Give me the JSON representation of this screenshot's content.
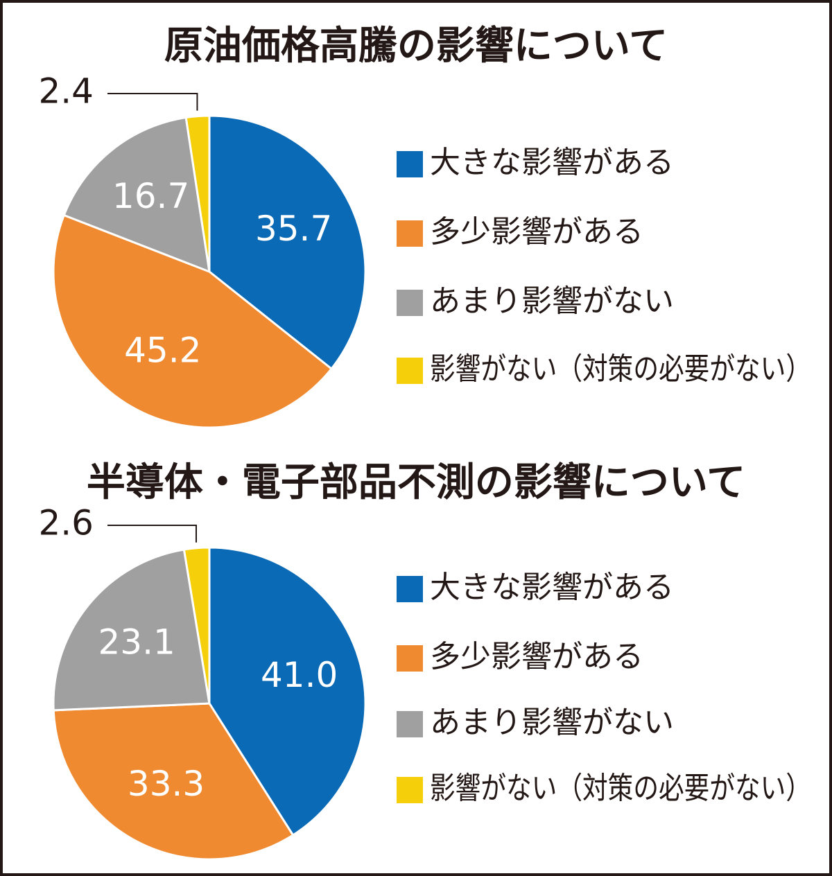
{
  "chart_data": [
    {
      "type": "pie",
      "title": "原油価格高騰の影響について",
      "categories": [
        "大きな影響がある",
        "多少影響がある",
        "あまり影響がない",
        "影響がない（対策の必要がない）"
      ],
      "values": [
        35.7,
        45.2,
        16.7,
        2.4
      ],
      "colors": [
        "#0a6ab5",
        "#ef8a30",
        "#a0a0a0",
        "#f5cf0a"
      ]
    },
    {
      "type": "pie",
      "title": "半導体・電子部品不測の影響について",
      "categories": [
        "大きな影響がある",
        "多少影響がある",
        "あまり影響がない",
        "影響がない（対策の必要がない）"
      ],
      "values": [
        41.0,
        33.3,
        23.1,
        2.6
      ],
      "value_labels": [
        "41.0",
        "33.3",
        "23.1",
        "2.6"
      ],
      "colors": [
        "#0a6ab5",
        "#ef8a30",
        "#a0a0a0",
        "#f5cf0a"
      ]
    }
  ]
}
